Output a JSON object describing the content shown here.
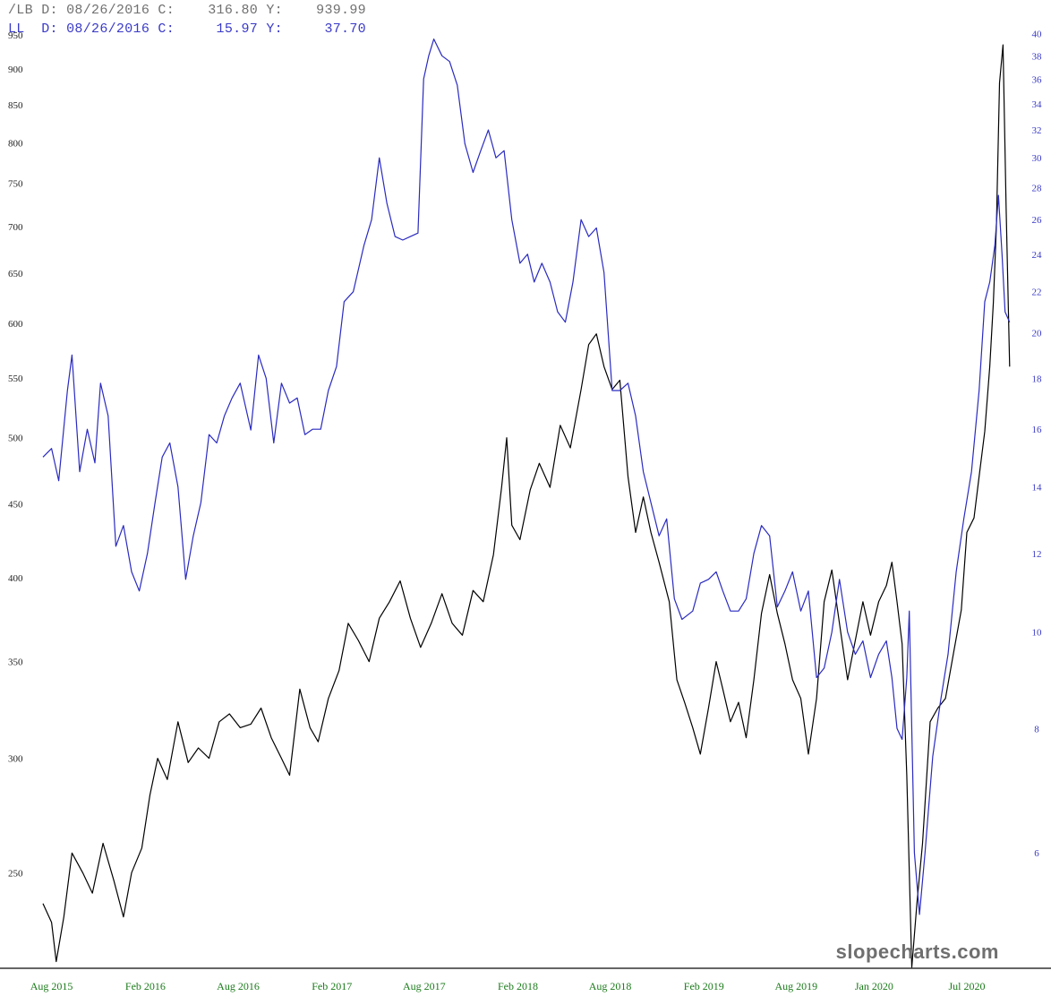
{
  "readouts": {
    "lb": "/LB D: 08/26/2016 C:    316.80 Y:    939.99",
    "ll": "LL  D: 08/26/2016 C:     15.97 Y:     37.70"
  },
  "watermark": "slopecharts.com",
  "chart_data": {
    "type": "line",
    "log_scale": true,
    "grid": false,
    "x_range": [
      "2015-07-01",
      "2020-09-18"
    ],
    "x_ticks": [
      {
        "date": "2015-08-01",
        "label": "Aug 2015"
      },
      {
        "date": "2016-02-01",
        "label": "Feb 2016"
      },
      {
        "date": "2016-08-01",
        "label": "Aug 2016"
      },
      {
        "date": "2017-02-01",
        "label": "Feb 2017"
      },
      {
        "date": "2017-08-01",
        "label": "Aug 2017"
      },
      {
        "date": "2018-02-01",
        "label": "Feb 2018"
      },
      {
        "date": "2018-08-01",
        "label": "Aug 2018"
      },
      {
        "date": "2019-02-01",
        "label": "Feb 2019"
      },
      {
        "date": "2019-08-01",
        "label": "Aug 2019"
      },
      {
        "date": "2020-01-01",
        "label": "Jan 2020"
      },
      {
        "date": "2020-07-01",
        "label": "Jul 2020"
      }
    ],
    "left_axis": {
      "ylim": [
        215,
        965
      ],
      "ticks": [
        250,
        300,
        350,
        400,
        450,
        500,
        550,
        600,
        650,
        700,
        750,
        800,
        850,
        900,
        950
      ],
      "color": "#222222"
    },
    "right_axis": {
      "ylim": [
        4.6,
        40.8
      ],
      "ticks": [
        6,
        8,
        10,
        12,
        14,
        16,
        18,
        20,
        22,
        24,
        26,
        28,
        30,
        32,
        34,
        36,
        38,
        40
      ],
      "color": "#3a3ac8"
    },
    "series": [
      {
        "axis": "left",
        "color": "#000000",
        "points": [
          [
            "2015-07-15",
            238
          ],
          [
            "2015-08-01",
            231
          ],
          [
            "2015-08-10",
            217
          ],
          [
            "2015-08-25",
            233
          ],
          [
            "2015-09-10",
            258
          ],
          [
            "2015-10-01",
            250
          ],
          [
            "2015-10-20",
            242
          ],
          [
            "2015-11-10",
            262
          ],
          [
            "2015-12-01",
            247
          ],
          [
            "2015-12-20",
            233
          ],
          [
            "2016-01-05",
            250
          ],
          [
            "2016-01-25",
            260
          ],
          [
            "2016-02-10",
            283
          ],
          [
            "2016-02-25",
            300
          ],
          [
            "2016-03-15",
            290
          ],
          [
            "2016-04-05",
            318
          ],
          [
            "2016-04-25",
            298
          ],
          [
            "2016-05-15",
            305
          ],
          [
            "2016-06-05",
            300
          ],
          [
            "2016-06-25",
            318
          ],
          [
            "2016-07-15",
            322
          ],
          [
            "2016-08-05",
            315
          ],
          [
            "2016-08-26",
            316.8
          ],
          [
            "2016-09-15",
            325
          ],
          [
            "2016-10-05",
            310
          ],
          [
            "2016-10-25",
            300
          ],
          [
            "2016-11-10",
            292
          ],
          [
            "2016-11-30",
            335
          ],
          [
            "2016-12-20",
            315
          ],
          [
            "2017-01-05",
            308
          ],
          [
            "2017-01-25",
            330
          ],
          [
            "2017-02-15",
            345
          ],
          [
            "2017-03-05",
            372
          ],
          [
            "2017-03-25",
            362
          ],
          [
            "2017-04-15",
            350
          ],
          [
            "2017-05-05",
            375
          ],
          [
            "2017-05-25",
            385
          ],
          [
            "2017-06-15",
            398
          ],
          [
            "2017-07-05",
            375
          ],
          [
            "2017-07-25",
            358
          ],
          [
            "2017-08-15",
            372
          ],
          [
            "2017-09-05",
            390
          ],
          [
            "2017-09-25",
            372
          ],
          [
            "2017-10-15",
            365
          ],
          [
            "2017-11-05",
            392
          ],
          [
            "2017-11-25",
            385
          ],
          [
            "2017-12-15",
            415
          ],
          [
            "2017-12-31",
            462
          ],
          [
            "2018-01-10",
            500
          ],
          [
            "2018-01-20",
            435
          ],
          [
            "2018-02-05",
            425
          ],
          [
            "2018-02-25",
            460
          ],
          [
            "2018-03-15",
            480
          ],
          [
            "2018-04-05",
            462
          ],
          [
            "2018-04-25",
            510
          ],
          [
            "2018-05-15",
            492
          ],
          [
            "2018-06-05",
            540
          ],
          [
            "2018-06-20",
            580
          ],
          [
            "2018-07-05",
            590
          ],
          [
            "2018-07-20",
            560
          ],
          [
            "2018-08-05",
            540
          ],
          [
            "2018-08-20",
            548
          ],
          [
            "2018-09-05",
            470
          ],
          [
            "2018-09-20",
            430
          ],
          [
            "2018-10-05",
            455
          ],
          [
            "2018-10-20",
            430
          ],
          [
            "2018-11-05",
            410
          ],
          [
            "2018-11-25",
            385
          ],
          [
            "2018-12-10",
            340
          ],
          [
            "2018-12-25",
            328
          ],
          [
            "2019-01-10",
            315
          ],
          [
            "2019-01-25",
            302
          ],
          [
            "2019-02-10",
            325
          ],
          [
            "2019-02-25",
            350
          ],
          [
            "2019-03-10",
            335
          ],
          [
            "2019-03-25",
            318
          ],
          [
            "2019-04-10",
            328
          ],
          [
            "2019-04-25",
            310
          ],
          [
            "2019-05-10",
            340
          ],
          [
            "2019-05-25",
            378
          ],
          [
            "2019-06-10",
            402
          ],
          [
            "2019-06-25",
            378
          ],
          [
            "2019-07-10",
            360
          ],
          [
            "2019-07-25",
            340
          ],
          [
            "2019-08-10",
            330
          ],
          [
            "2019-08-25",
            302
          ],
          [
            "2019-09-10",
            330
          ],
          [
            "2019-09-25",
            385
          ],
          [
            "2019-10-10",
            405
          ],
          [
            "2019-10-25",
            372
          ],
          [
            "2019-11-10",
            340
          ],
          [
            "2019-11-25",
            362
          ],
          [
            "2019-12-10",
            385
          ],
          [
            "2019-12-25",
            365
          ],
          [
            "2020-01-10",
            385
          ],
          [
            "2020-01-25",
            395
          ],
          [
            "2020-02-05",
            410
          ],
          [
            "2020-02-15",
            385
          ],
          [
            "2020-02-25",
            360
          ],
          [
            "2020-03-05",
            292
          ],
          [
            "2020-03-15",
            215
          ],
          [
            "2020-03-25",
            238
          ],
          [
            "2020-04-05",
            262
          ],
          [
            "2020-04-20",
            318
          ],
          [
            "2020-05-05",
            325
          ],
          [
            "2020-05-20",
            330
          ],
          [
            "2020-06-05",
            355
          ],
          [
            "2020-06-20",
            380
          ],
          [
            "2020-07-01",
            430
          ],
          [
            "2020-07-15",
            440
          ],
          [
            "2020-07-25",
            470
          ],
          [
            "2020-08-05",
            505
          ],
          [
            "2020-08-15",
            560
          ],
          [
            "2020-08-22",
            620
          ],
          [
            "2020-08-28",
            700
          ],
          [
            "2020-09-03",
            880
          ],
          [
            "2020-09-10",
            935
          ],
          [
            "2020-09-16",
            720
          ],
          [
            "2020-09-23",
            560
          ]
        ]
      },
      {
        "axis": "right",
        "color": "#2a2ac0",
        "points": [
          [
            "2015-07-15",
            15.0
          ],
          [
            "2015-08-01",
            15.3
          ],
          [
            "2015-08-15",
            14.2
          ],
          [
            "2015-09-01",
            17.5
          ],
          [
            "2015-09-10",
            19.0
          ],
          [
            "2015-09-25",
            14.5
          ],
          [
            "2015-10-10",
            16.0
          ],
          [
            "2015-10-25",
            14.8
          ],
          [
            "2015-11-05",
            17.8
          ],
          [
            "2015-11-20",
            16.5
          ],
          [
            "2015-12-05",
            12.2
          ],
          [
            "2015-12-20",
            12.8
          ],
          [
            "2016-01-05",
            11.5
          ],
          [
            "2016-01-20",
            11.0
          ],
          [
            "2016-02-05",
            12.0
          ],
          [
            "2016-02-20",
            13.5
          ],
          [
            "2016-03-05",
            15.0
          ],
          [
            "2016-03-20",
            15.5
          ],
          [
            "2016-04-05",
            14.0
          ],
          [
            "2016-04-20",
            11.3
          ],
          [
            "2016-05-05",
            12.5
          ],
          [
            "2016-05-20",
            13.5
          ],
          [
            "2016-06-05",
            15.8
          ],
          [
            "2016-06-20",
            15.5
          ],
          [
            "2016-07-05",
            16.5
          ],
          [
            "2016-07-20",
            17.2
          ],
          [
            "2016-08-05",
            17.8
          ],
          [
            "2016-08-26",
            15.97
          ],
          [
            "2016-09-10",
            19.0
          ],
          [
            "2016-09-25",
            18.0
          ],
          [
            "2016-10-10",
            15.5
          ],
          [
            "2016-10-25",
            17.8
          ],
          [
            "2016-11-10",
            17.0
          ],
          [
            "2016-11-25",
            17.2
          ],
          [
            "2016-12-10",
            15.8
          ],
          [
            "2016-12-25",
            16.0
          ],
          [
            "2017-01-10",
            16.0
          ],
          [
            "2017-01-25",
            17.5
          ],
          [
            "2017-02-10",
            18.5
          ],
          [
            "2017-02-25",
            21.5
          ],
          [
            "2017-03-15",
            22.0
          ],
          [
            "2017-04-05",
            24.5
          ],
          [
            "2017-04-20",
            26.0
          ],
          [
            "2017-05-05",
            30.0
          ],
          [
            "2017-05-20",
            27.0
          ],
          [
            "2017-06-05",
            25.0
          ],
          [
            "2017-06-20",
            24.8
          ],
          [
            "2017-07-05",
            25.0
          ],
          [
            "2017-07-20",
            25.2
          ],
          [
            "2017-07-31",
            36.0
          ],
          [
            "2017-08-10",
            38.0
          ],
          [
            "2017-08-20",
            39.5
          ],
          [
            "2017-09-05",
            38.0
          ],
          [
            "2017-09-20",
            37.5
          ],
          [
            "2017-10-05",
            35.5
          ],
          [
            "2017-10-20",
            31.0
          ],
          [
            "2017-11-05",
            29.0
          ],
          [
            "2017-11-20",
            30.5
          ],
          [
            "2017-12-05",
            32.0
          ],
          [
            "2017-12-20",
            30.0
          ],
          [
            "2018-01-05",
            30.5
          ],
          [
            "2018-01-20",
            26.0
          ],
          [
            "2018-02-05",
            23.5
          ],
          [
            "2018-02-20",
            24.0
          ],
          [
            "2018-03-05",
            22.5
          ],
          [
            "2018-03-20",
            23.5
          ],
          [
            "2018-04-05",
            22.5
          ],
          [
            "2018-04-20",
            21.0
          ],
          [
            "2018-05-05",
            20.5
          ],
          [
            "2018-05-20",
            22.5
          ],
          [
            "2018-06-05",
            26.0
          ],
          [
            "2018-06-20",
            25.0
          ],
          [
            "2018-07-05",
            25.5
          ],
          [
            "2018-07-20",
            23.0
          ],
          [
            "2018-08-05",
            17.5
          ],
          [
            "2018-08-20",
            17.5
          ],
          [
            "2018-09-05",
            17.8
          ],
          [
            "2018-09-20",
            16.5
          ],
          [
            "2018-10-05",
            14.5
          ],
          [
            "2018-10-20",
            13.5
          ],
          [
            "2018-11-05",
            12.5
          ],
          [
            "2018-11-20",
            13.0
          ],
          [
            "2018-12-05",
            10.8
          ],
          [
            "2018-12-20",
            10.3
          ],
          [
            "2019-01-10",
            10.5
          ],
          [
            "2019-01-25",
            11.2
          ],
          [
            "2019-02-10",
            11.3
          ],
          [
            "2019-02-25",
            11.5
          ],
          [
            "2019-03-10",
            11.0
          ],
          [
            "2019-03-25",
            10.5
          ],
          [
            "2019-04-10",
            10.5
          ],
          [
            "2019-04-25",
            10.8
          ],
          [
            "2019-05-10",
            12.0
          ],
          [
            "2019-05-25",
            12.8
          ],
          [
            "2019-06-10",
            12.5
          ],
          [
            "2019-06-25",
            10.6
          ],
          [
            "2019-07-10",
            11.0
          ],
          [
            "2019-07-25",
            11.5
          ],
          [
            "2019-08-10",
            10.5
          ],
          [
            "2019-08-25",
            11.0
          ],
          [
            "2019-09-10",
            9.0
          ],
          [
            "2019-09-25",
            9.2
          ],
          [
            "2019-10-10",
            10.0
          ],
          [
            "2019-10-25",
            11.3
          ],
          [
            "2019-11-10",
            10.0
          ],
          [
            "2019-11-25",
            9.5
          ],
          [
            "2019-12-10",
            9.8
          ],
          [
            "2019-12-25",
            9.0
          ],
          [
            "2020-01-10",
            9.5
          ],
          [
            "2020-01-25",
            9.8
          ],
          [
            "2020-02-05",
            9.0
          ],
          [
            "2020-02-15",
            8.0
          ],
          [
            "2020-02-25",
            7.8
          ],
          [
            "2020-03-05",
            9.0
          ],
          [
            "2020-03-10",
            10.5
          ],
          [
            "2020-03-20",
            6.0
          ],
          [
            "2020-03-30",
            5.2
          ],
          [
            "2020-04-10",
            6.0
          ],
          [
            "2020-04-25",
            7.5
          ],
          [
            "2020-05-10",
            8.5
          ],
          [
            "2020-05-25",
            9.5
          ],
          [
            "2020-06-10",
            11.5
          ],
          [
            "2020-06-25",
            13.0
          ],
          [
            "2020-07-10",
            14.5
          ],
          [
            "2020-07-25",
            17.5
          ],
          [
            "2020-08-05",
            21.5
          ],
          [
            "2020-08-15",
            22.5
          ],
          [
            "2020-08-25",
            24.5
          ],
          [
            "2020-09-01",
            27.5
          ],
          [
            "2020-09-08",
            24.0
          ],
          [
            "2020-09-14",
            21.0
          ],
          [
            "2020-09-23",
            20.5
          ]
        ]
      }
    ]
  }
}
